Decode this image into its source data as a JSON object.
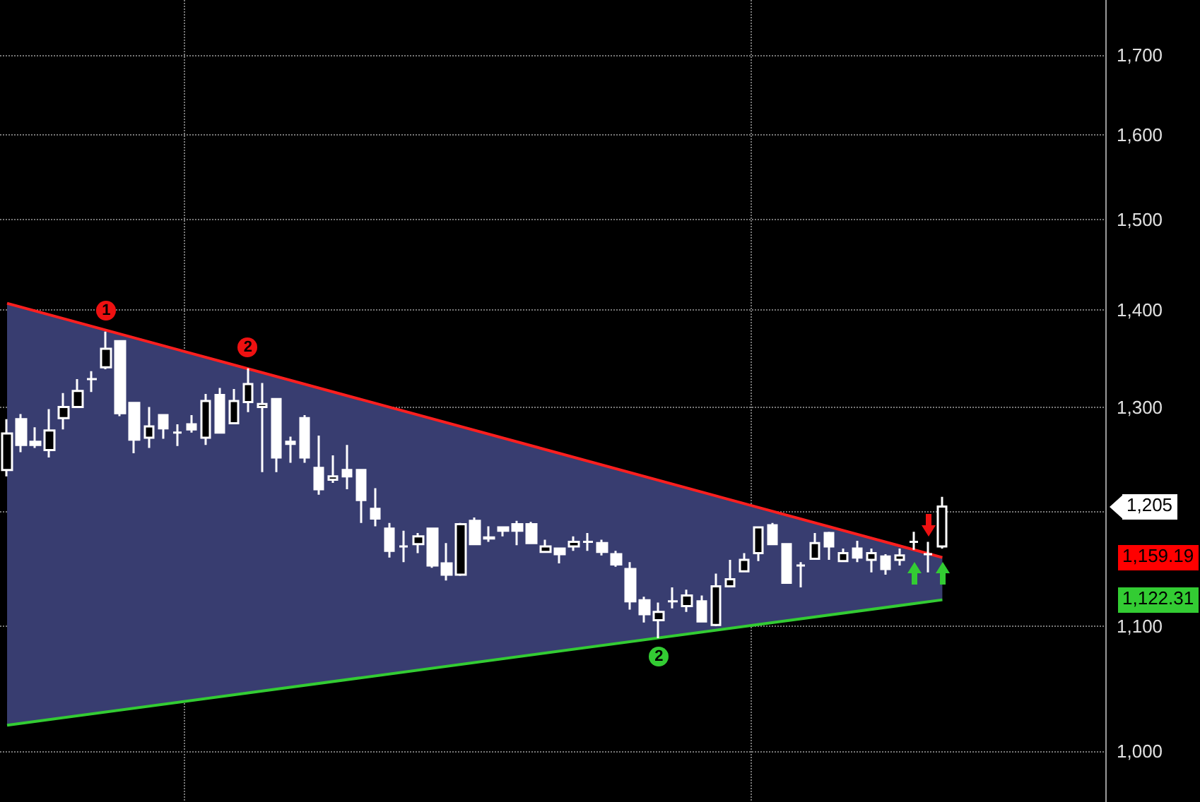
{
  "chart_data": {
    "type": "candlestick",
    "categories": [
      null,
      null,
      null,
      null,
      null,
      null,
      null,
      null,
      null,
      null,
      null,
      null,
      null,
      null,
      null,
      null,
      null,
      null,
      null,
      null,
      null,
      null,
      null,
      null,
      null,
      null,
      null,
      null,
      null,
      null,
      null,
      null,
      null,
      null,
      null,
      null,
      null,
      null,
      null,
      null,
      null,
      null,
      null,
      null,
      null,
      null,
      null,
      null,
      null,
      null,
      null,
      null,
      null,
      null,
      null,
      null,
      null,
      null,
      null,
      null,
      null,
      null,
      null,
      null,
      null,
      null,
      null,
      null,
      null,
      null,
      null,
      null,
      null,
      null,
      null,
      null,
      null,
      null
    ],
    "series": [
      {
        "type": "area",
        "color": "#383d70",
        "values": [
          1407,
          null,
          null,
          null,
          null,
          null,
          null,
          null,
          null,
          null,
          null,
          null,
          null,
          null,
          null,
          null,
          null,
          null,
          null,
          null,
          null,
          null,
          null,
          null,
          null,
          null,
          null,
          null,
          null,
          null,
          null,
          null,
          null,
          null,
          null,
          null,
          null,
          null,
          null,
          null,
          null,
          null,
          null,
          null,
          null,
          null,
          null,
          null,
          null,
          null,
          null,
          null,
          null,
          null,
          null,
          null,
          null,
          null,
          null,
          null,
          null,
          null,
          null,
          null,
          null,
          null,
          1159.19,
          null,
          null,
          null,
          null,
          null,
          null,
          null,
          null,
          null,
          null,
          null
        ]
      },
      {
        "type": "line",
        "color": "#ff1f1f",
        "values": [
          1407,
          null,
          null,
          null,
          null,
          null,
          null,
          null,
          null,
          null,
          null,
          null,
          null,
          null,
          null,
          null,
          null,
          null,
          null,
          null,
          null,
          null,
          null,
          null,
          null,
          null,
          null,
          null,
          null,
          null,
          null,
          null,
          null,
          null,
          null,
          null,
          null,
          null,
          null,
          null,
          null,
          null,
          null,
          null,
          null,
          null,
          null,
          null,
          null,
          null,
          null,
          null,
          null,
          null,
          null,
          null,
          null,
          null,
          null,
          null,
          null,
          null,
          null,
          null,
          null,
          null,
          1159.19,
          null,
          null,
          null,
          null,
          null,
          null,
          null,
          null,
          null,
          null,
          null
        ]
      },
      {
        "type": "line",
        "color": "#33cc33",
        "values": [
          1020,
          null,
          null,
          null,
          null,
          null,
          null,
          null,
          null,
          null,
          null,
          null,
          null,
          null,
          null,
          null,
          null,
          null,
          null,
          null,
          null,
          null,
          null,
          null,
          null,
          null,
          null,
          null,
          null,
          null,
          null,
          null,
          null,
          null,
          null,
          null,
          null,
          null,
          null,
          null,
          null,
          null,
          null,
          null,
          null,
          null,
          null,
          null,
          null,
          null,
          null,
          null,
          null,
          null,
          null,
          null,
          null,
          null,
          null,
          null,
          null,
          null,
          null,
          null,
          null,
          null,
          1122.31,
          null,
          null,
          null,
          null,
          null,
          null,
          null,
          null,
          null,
          null,
          null
        ]
      },
      {
        "color": "#ffffff",
        "ohlc": [
          [
            1239,
            1288,
            1233,
            1274
          ],
          [
            1288,
            1293,
            1256,
            1263
          ],
          [
            1266,
            1280,
            1260,
            1263
          ],
          [
            1258,
            1298,
            1251,
            1277
          ],
          [
            1289,
            1314,
            1278,
            1300
          ],
          [
            1300,
            1328,
            1300,
            1316
          ],
          [
            1328,
            1336,
            1315,
            1328
          ],
          [
            1340,
            1377,
            1338,
            1359
          ],
          [
            1367,
            1367,
            1291,
            1294
          ],
          [
            1304,
            1304,
            1255,
            1268
          ],
          [
            1270,
            1300,
            1260,
            1281
          ],
          [
            1292,
            1292,
            1269,
            1279
          ],
          [
            1275,
            1283,
            1262,
            1275
          ],
          [
            1283,
            1292,
            1275,
            1278
          ],
          [
            1270,
            1313,
            1263,
            1306
          ],
          [
            1312,
            1319,
            1274,
            1275
          ],
          [
            1284,
            1318,
            1284,
            1306
          ],
          [
            1305,
            1339,
            1295,
            1323
          ],
          [
            1300,
            1324,
            1237,
            1303
          ],
          [
            1308,
            1308,
            1237,
            1251
          ],
          [
            1264,
            1271,
            1246,
            1266
          ],
          [
            1289,
            1292,
            1246,
            1251
          ],
          [
            1241,
            1272,
            1216,
            1221
          ],
          [
            1230,
            1253,
            1227,
            1233
          ],
          [
            1239,
            1263,
            1221,
            1233
          ],
          [
            1239,
            1239,
            1190,
            1211
          ],
          [
            1203,
            1222,
            1187,
            1194
          ],
          [
            1185,
            1190,
            1159,
            1165
          ],
          [
            1169,
            1183,
            1155,
            1169
          ],
          [
            1171,
            1181,
            1163,
            1178
          ],
          [
            1185,
            1185,
            1150,
            1152
          ],
          [
            1154,
            1172,
            1139,
            1144
          ],
          [
            1144,
            1190,
            1143,
            1189
          ],
          [
            1192,
            1195,
            1170,
            1171
          ],
          [
            1176,
            1187,
            1173,
            1177
          ],
          [
            1186,
            1187,
            1178,
            1183
          ],
          [
            1189,
            1192,
            1170,
            1183
          ],
          [
            1189,
            1191,
            1171,
            1172
          ],
          [
            1164,
            1175,
            1164,
            1169
          ],
          [
            1167,
            1167,
            1154,
            1162
          ],
          [
            1169,
            1178,
            1165,
            1173
          ],
          [
            1173,
            1181,
            1165,
            1173
          ],
          [
            1172,
            1175,
            1161,
            1164
          ],
          [
            1162,
            1165,
            1151,
            1153
          ],
          [
            1149,
            1155,
            1114,
            1121
          ],
          [
            1122,
            1125,
            1103,
            1110
          ],
          [
            1105,
            1120,
            1090,
            1112
          ],
          [
            1121,
            1133,
            1115,
            1121
          ],
          [
            1117,
            1131,
            1112,
            1126
          ],
          [
            1121,
            1126,
            1103,
            1104
          ],
          [
            1101,
            1145,
            1100,
            1134
          ],
          [
            1134,
            1157,
            1134,
            1140
          ],
          [
            1147,
            1163,
            1147,
            1157
          ],
          [
            1163,
            1186,
            1156,
            1186
          ],
          [
            1188,
            1190,
            1170,
            1171
          ],
          [
            1171,
            1172,
            1136,
            1137
          ],
          [
            1152,
            1155,
            1133,
            1152
          ],
          [
            1158,
            1181,
            1157,
            1172
          ],
          [
            1181,
            1182,
            1157,
            1169
          ],
          [
            1156,
            1167,
            1156,
            1163
          ],
          [
            1167,
            1174,
            1155,
            1159
          ],
          [
            1157,
            1167,
            1146,
            1163
          ],
          [
            1160,
            1162,
            1144,
            1149
          ],
          [
            1157,
            1167,
            1152,
            1161
          ],
          [
            1173,
            1182,
            1166,
            1173
          ],
          [
            1162,
            1173,
            1146,
            1162
          ],
          [
            1169,
            1214,
            1167,
            1205
          ],
          null,
          null,
          null,
          null,
          null,
          null,
          null,
          null,
          null,
          null,
          null
        ]
      }
    ],
    "ylim": [
      962,
      1773
    ],
    "yticks": [
      {
        "value": 1000,
        "label": "1,000"
      },
      {
        "value": 1100,
        "label": "1,100"
      },
      {
        "value": 1200,
        "label": null
      },
      {
        "value": 1300,
        "label": "1,300"
      },
      {
        "value": 1400,
        "label": "1,400"
      },
      {
        "value": 1500,
        "label": "1,500"
      },
      {
        "value": 1600,
        "label": "1,600"
      },
      {
        "value": 1700,
        "label": "1,700"
      }
    ],
    "log": true,
    "grid": true,
    "tick_labels": "y",
    "annotations": [
      "1",
      "2",
      "2",
      "1,205",
      "1,159.19",
      "1,122.31"
    ]
  }
}
